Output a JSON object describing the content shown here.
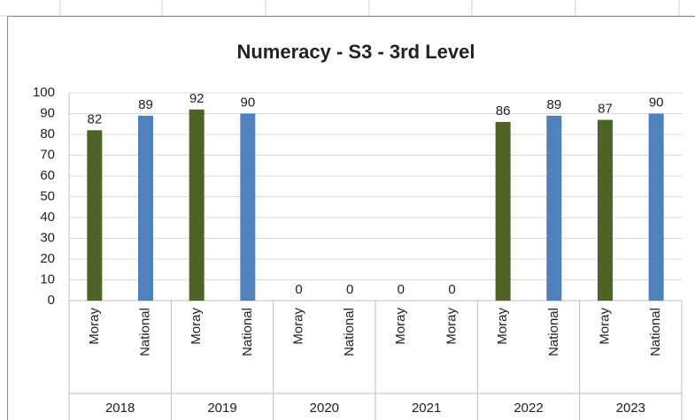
{
  "chart_data": {
    "type": "bar",
    "title": "Numeracy - S3 - 3rd Level",
    "groups": [
      {
        "name": "2018",
        "categories": [
          "Moray",
          "National"
        ],
        "values": [
          82,
          89
        ],
        "colors": [
          "#4f6228",
          "#4f81bd"
        ]
      },
      {
        "name": "2019",
        "categories": [
          "Moray",
          "National"
        ],
        "values": [
          92,
          90
        ],
        "colors": [
          "#4f6228",
          "#4f81bd"
        ]
      },
      {
        "name": "2020",
        "categories": [
          "Moray",
          "National"
        ],
        "values": [
          0,
          0
        ],
        "colors": [
          "#4f6228",
          "#4f81bd"
        ]
      },
      {
        "name": "2021",
        "categories": [
          "Moray",
          "Moray"
        ],
        "values": [
          0,
          0
        ],
        "colors": [
          "#4f6228",
          "#4f6228"
        ]
      },
      {
        "name": "2022",
        "categories": [
          "Moray",
          "National"
        ],
        "values": [
          86,
          89
        ],
        "colors": [
          "#4f6228",
          "#4f81bd"
        ]
      },
      {
        "name": "2023",
        "categories": [
          "Moray",
          "National"
        ],
        "values": [
          87,
          90
        ],
        "colors": [
          "#4f6228",
          "#4f81bd"
        ]
      }
    ],
    "ylim": [
      0,
      100
    ],
    "yticks": [
      0,
      10,
      20,
      30,
      40,
      50,
      60,
      70,
      80,
      90,
      100
    ],
    "grid": true
  }
}
